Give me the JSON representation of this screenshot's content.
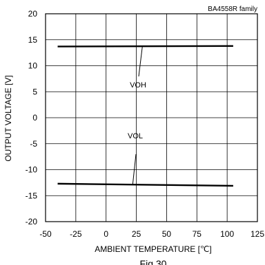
{
  "chart_data": {
    "type": "line",
    "title": "BA4558R  family",
    "xlabel": "AMBIENT TEMPERATURE [℃]",
    "ylabel": "OUTPUT VOLTAGE [V]",
    "caption": "Fig.30",
    "xlim": [
      -50,
      125
    ],
    "ylim": [
      -20,
      20
    ],
    "xticks": [
      "-50",
      "-25",
      "0",
      "25",
      "50",
      "75",
      "100",
      "125"
    ],
    "yticks": [
      "20",
      "15",
      "10",
      "5",
      "0",
      "-5",
      "-10",
      "-15",
      "-20"
    ],
    "grid": true,
    "series": [
      {
        "name": "VOH",
        "x": [
          -40,
          105
        ],
        "y": [
          13.7,
          13.8
        ]
      },
      {
        "name": "VOL",
        "x": [
          -40,
          105
        ],
        "y": [
          -12.7,
          -13.1
        ]
      }
    ],
    "annotations": [
      {
        "text": "VOH",
        "points_to": [
          30,
          13.75
        ]
      },
      {
        "text": "VOL",
        "points_to": [
          22,
          -12.85
        ]
      }
    ]
  }
}
